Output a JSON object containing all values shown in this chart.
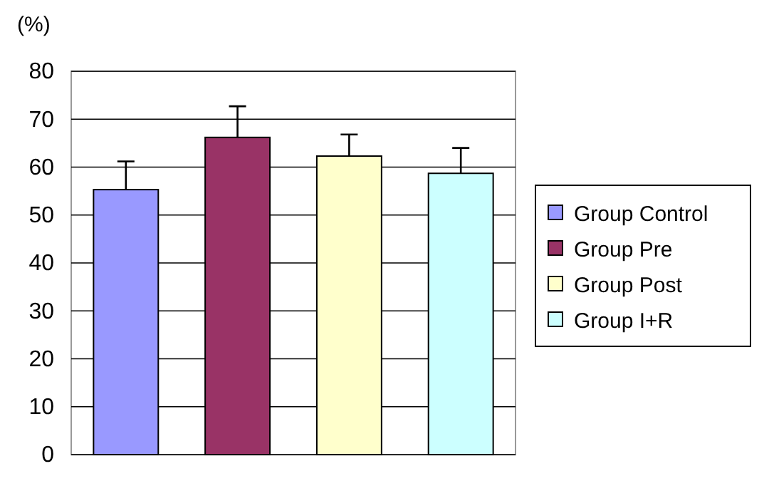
{
  "chart_data": {
    "type": "bar",
    "ylabel": "(%)",
    "categories": [
      null
    ],
    "series": [
      {
        "name": "Group Control",
        "color": "#9999ff",
        "values": [
          55.3
        ],
        "errors": [
          5.9
        ]
      },
      {
        "name": "Group Pre",
        "color": "#993366",
        "values": [
          66.2
        ],
        "errors": [
          6.5
        ]
      },
      {
        "name": "Group Post",
        "color": "#ffffcc",
        "values": [
          62.3
        ],
        "errors": [
          4.5
        ]
      },
      {
        "name": "Group I+R",
        "color": "#ccffff",
        "values": [
          58.7
        ],
        "errors": [
          5.3
        ]
      }
    ],
    "ylim": [
      0,
      80
    ],
    "yticks": [
      0,
      10,
      20,
      30,
      40,
      50,
      60,
      70,
      80
    ],
    "grid": "y",
    "legend": "right"
  }
}
